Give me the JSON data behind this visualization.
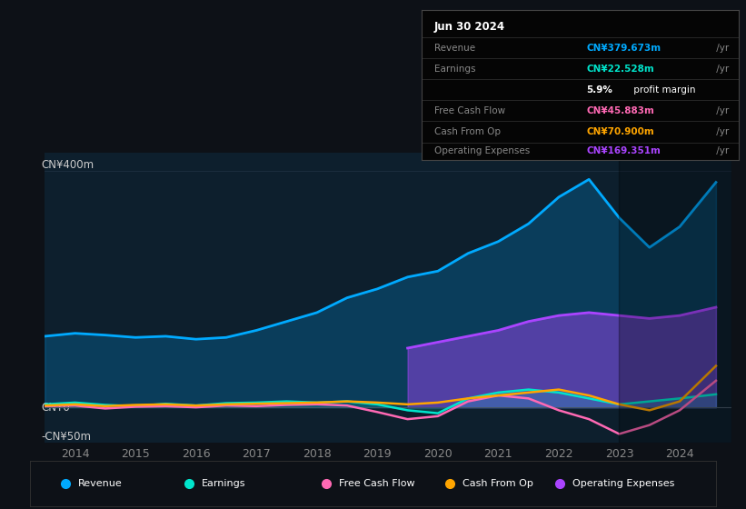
{
  "bg_color": "#0d1117",
  "chart_bg": "#0d1f2d",
  "ylabel_400": "CN¥400m",
  "ylabel_0": "CN¥0",
  "ylabel_neg50": "-CN¥50m",
  "ylim": [
    -60,
    430
  ],
  "xlim_start": 2013.5,
  "xlim_end": 2024.85,
  "xticks": [
    2014,
    2015,
    2016,
    2017,
    2018,
    2019,
    2020,
    2021,
    2022,
    2023,
    2024
  ],
  "revenue_color": "#00aaff",
  "earnings_color": "#00e5cc",
  "fcf_color": "#ff69b4",
  "cashfromop_color": "#ffa500",
  "opex_color": "#aa44ff",
  "legend_items": [
    {
      "label": "Revenue",
      "color": "#00aaff"
    },
    {
      "label": "Earnings",
      "color": "#00e5cc"
    },
    {
      "label": "Free Cash Flow",
      "color": "#ff69b4"
    },
    {
      "label": "Cash From Op",
      "color": "#ffa500"
    },
    {
      "label": "Operating Expenses",
      "color": "#aa44ff"
    }
  ],
  "tooltip": {
    "title": "Jun 30 2024",
    "rows": [
      {
        "label": "Revenue",
        "value": "CN¥379.673m",
        "color": "#00aaff"
      },
      {
        "label": "Earnings",
        "value": "CN¥22.528m",
        "color": "#00e5cc"
      },
      {
        "label": "",
        "value": "5.9% profit margin",
        "color": "#ffffff",
        "bold_part": "5.9%"
      },
      {
        "label": "Free Cash Flow",
        "value": "CN¥45.883m",
        "color": "#ff69b4"
      },
      {
        "label": "Cash From Op",
        "value": "CN¥70.900m",
        "color": "#ffa500"
      },
      {
        "label": "Operating Expenses",
        "value": "CN¥169.351m",
        "color": "#aa44ff"
      }
    ]
  },
  "revenue": {
    "years": [
      2013.5,
      2014.0,
      2014.5,
      2015.0,
      2015.5,
      2016.0,
      2016.5,
      2017.0,
      2017.5,
      2018.0,
      2018.5,
      2019.0,
      2019.5,
      2020.0,
      2020.5,
      2021.0,
      2021.5,
      2022.0,
      2022.5,
      2023.0,
      2023.5,
      2024.0,
      2024.6
    ],
    "values": [
      120,
      125,
      122,
      118,
      120,
      115,
      118,
      130,
      145,
      160,
      185,
      200,
      220,
      230,
      260,
      280,
      310,
      355,
      385,
      320,
      270,
      305,
      380
    ]
  },
  "earnings": {
    "years": [
      2013.5,
      2014.0,
      2014.5,
      2015.0,
      2015.5,
      2016.0,
      2016.5,
      2017.0,
      2017.5,
      2018.0,
      2018.5,
      2019.0,
      2019.5,
      2020.0,
      2020.5,
      2021.0,
      2021.5,
      2022.0,
      2022.5,
      2023.0,
      2023.5,
      2024.0,
      2024.6
    ],
    "values": [
      5,
      8,
      4,
      2,
      6,
      3,
      7,
      8,
      10,
      8,
      10,
      5,
      -5,
      -10,
      15,
      25,
      30,
      25,
      15,
      5,
      10,
      15,
      22
    ]
  },
  "fcf": {
    "years": [
      2013.5,
      2014.0,
      2014.5,
      2015.0,
      2015.5,
      2016.0,
      2016.5,
      2017.0,
      2017.5,
      2018.0,
      2018.5,
      2019.0,
      2019.5,
      2020.0,
      2020.5,
      2021.0,
      2021.5,
      2022.0,
      2022.5,
      2023.0,
      2023.5,
      2024.0,
      2024.6
    ],
    "values": [
      2,
      3,
      -2,
      1,
      2,
      0,
      3,
      2,
      4,
      5,
      3,
      -8,
      -20,
      -15,
      10,
      20,
      15,
      -5,
      -20,
      -45,
      -30,
      -5,
      45
    ]
  },
  "cashfromop": {
    "years": [
      2013.5,
      2014.0,
      2014.5,
      2015.0,
      2015.5,
      2016.0,
      2016.5,
      2017.0,
      2017.5,
      2018.0,
      2018.5,
      2019.0,
      2019.5,
      2020.0,
      2020.5,
      2021.0,
      2021.5,
      2022.0,
      2022.5,
      2023.0,
      2023.5,
      2024.0,
      2024.6
    ],
    "values": [
      3,
      5,
      2,
      4,
      5,
      3,
      5,
      6,
      7,
      8,
      10,
      8,
      5,
      8,
      15,
      20,
      25,
      30,
      20,
      5,
      -5,
      10,
      70
    ]
  },
  "opex": {
    "years": [
      2019.5,
      2020.0,
      2020.5,
      2021.0,
      2021.5,
      2022.0,
      2022.5,
      2023.0,
      2023.5,
      2024.0,
      2024.6
    ],
    "values": [
      100,
      110,
      120,
      130,
      145,
      155,
      160,
      155,
      150,
      155,
      169
    ]
  }
}
